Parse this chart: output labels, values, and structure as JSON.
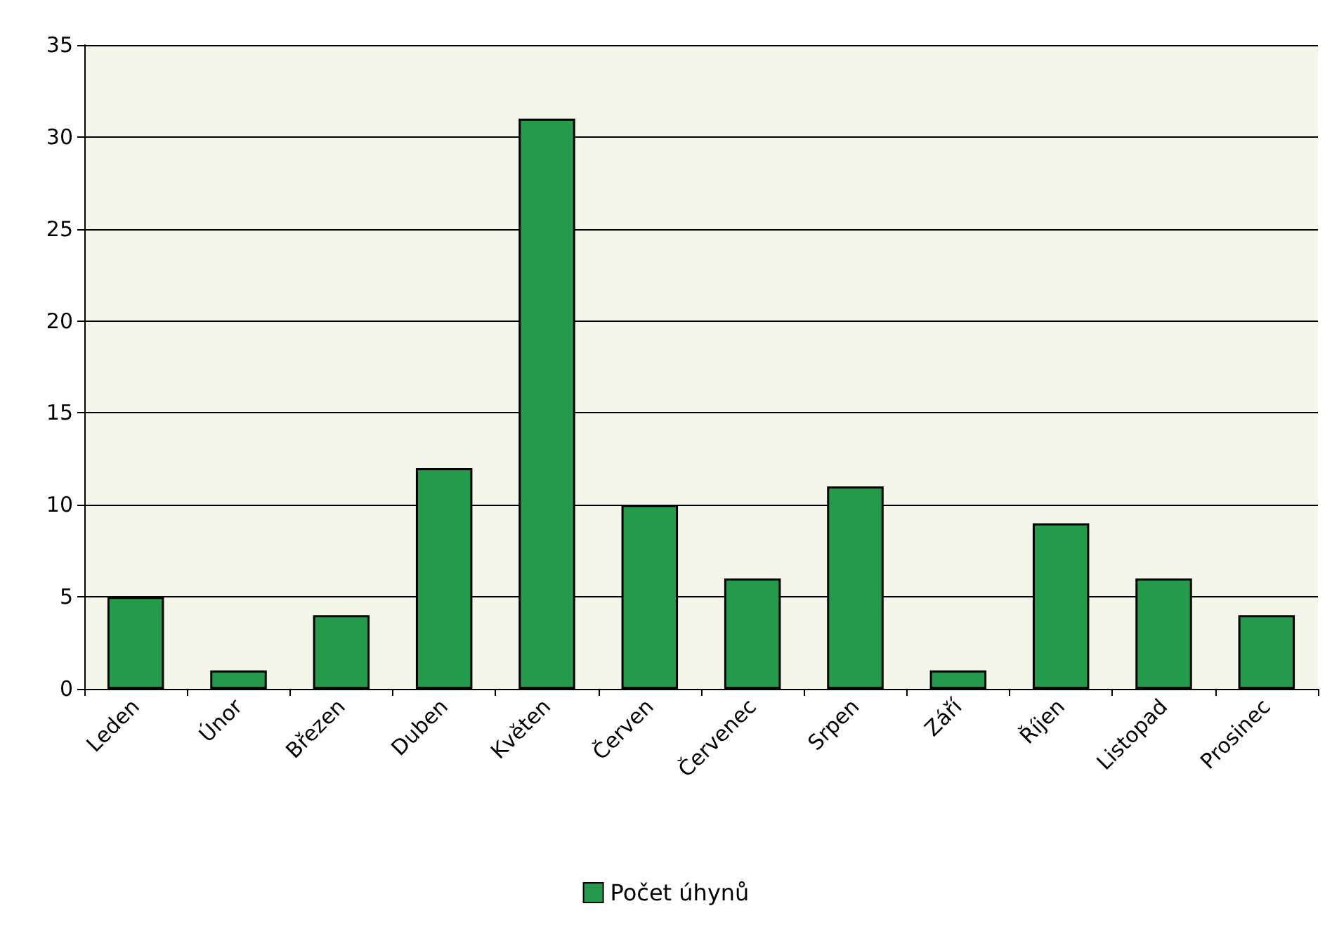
{
  "chart_data": {
    "type": "bar",
    "categories": [
      "Leden",
      "Únor",
      "Březen",
      "Duben",
      "Květen",
      "Červen",
      "Červenec",
      "Srpen",
      "Září",
      "Říjen",
      "Listopad",
      "Prosinec"
    ],
    "series": [
      {
        "name": "Počet úhynů",
        "color": "#239b4a",
        "values": [
          5,
          1,
          4,
          12,
          31,
          10,
          6,
          11,
          1,
          9,
          6,
          4
        ]
      }
    ],
    "ylim": [
      0,
      35
    ],
    "yticks": [
      0,
      5,
      10,
      15,
      20,
      25,
      30,
      35
    ],
    "grid": "y",
    "legend": "bottom"
  }
}
